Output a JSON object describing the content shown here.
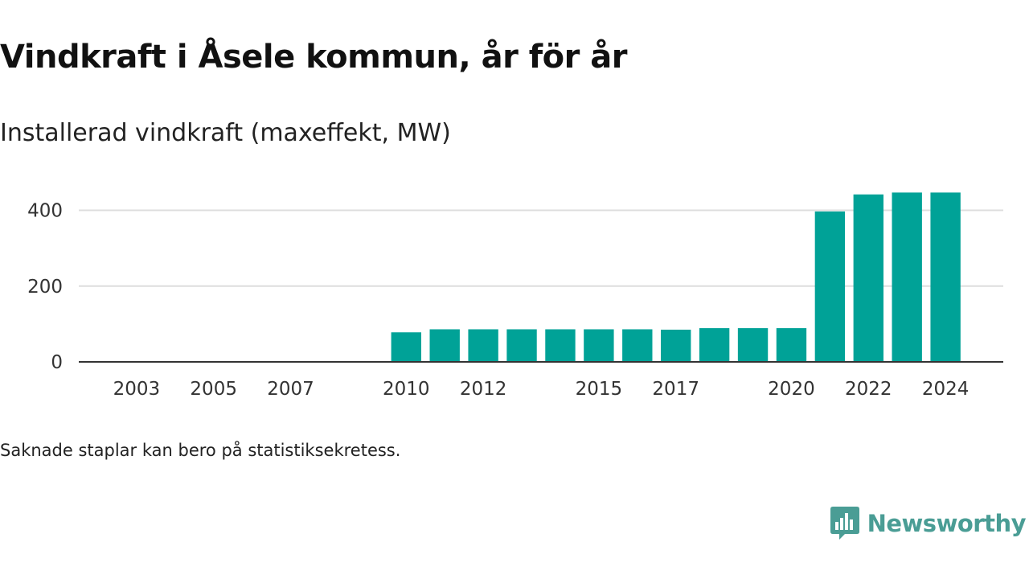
{
  "title": "Vindkraft i Åsele kommun, år för år",
  "subtitle": "Installerad vindkraft (maxeffekt, MW)",
  "note": "Saknade staplar kan bero på statistiksekretess.",
  "brand": {
    "name": "Newsworthy",
    "icon": "newsworthy-logo-icon",
    "color": "#4a9d95"
  },
  "colors": {
    "bar": "#00a297",
    "grid": "#dddddd",
    "axis": "#333333"
  },
  "chart_data": {
    "type": "bar",
    "title": "Vindkraft i Åsele kommun, år för år",
    "subtitle": "Installerad vindkraft (maxeffekt, MW)",
    "xlabel": "",
    "ylabel": "",
    "ylim": [
      0,
      450
    ],
    "yticks": [
      0,
      200,
      400
    ],
    "xlim": [
      2002,
      2025
    ],
    "xticks": [
      2003,
      2005,
      2007,
      2010,
      2012,
      2015,
      2017,
      2020,
      2022,
      2024
    ],
    "grid": true,
    "categories": [
      2010,
      2011,
      2012,
      2013,
      2014,
      2015,
      2016,
      2017,
      2018,
      2019,
      2020,
      2021,
      2022,
      2023,
      2024
    ],
    "values": [
      78,
      86,
      86,
      86,
      86,
      86,
      86,
      85,
      89,
      89,
      89,
      397,
      442,
      447,
      447
    ]
  }
}
